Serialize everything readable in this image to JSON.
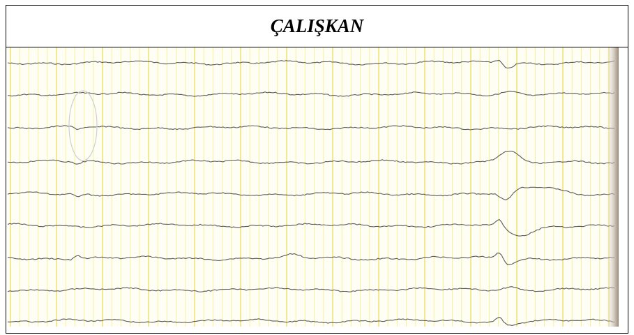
{
  "header": {
    "title": "ÇALIŞKAN"
  }
}
